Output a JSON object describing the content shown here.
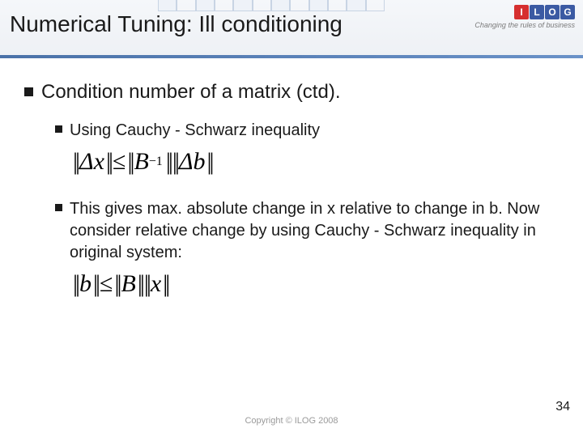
{
  "header": {
    "title": "Numerical Tuning: Ill conditioning",
    "logo": {
      "letters": [
        "I",
        "L",
        "O",
        "G"
      ],
      "brick_colors": [
        "#d62f2f",
        "#3b5aa3",
        "#3b5aa3",
        "#3b5aa3"
      ],
      "tagline": "Changing the rules of business"
    },
    "grid_cells": 12,
    "gradient_from": "#4a72a8",
    "gradient_to": "#6a92c8"
  },
  "content": {
    "main_bullet": "Condition number of a matrix (ctd).",
    "sub_bullet_1": "Using Cauchy - Schwarz inequality",
    "sub_bullet_2": "This gives max. absolute change in x relative to change in b.  Now consider relative change by using Cauchy - Schwarz inequality in original system:",
    "formula1": {
      "lhs_var": "Δx",
      "op": "≤",
      "rhs_var1": "B",
      "rhs_sup": "−1",
      "rhs_var2": "Δb"
    },
    "formula2": {
      "lhs_var": "b",
      "op": "≤",
      "rhs_var1": "B",
      "rhs_var2": "x"
    }
  },
  "footer": {
    "copyright": "Copyright © ILOG 2008",
    "page_number": "34"
  },
  "colors": {
    "text": "#1a1a1a",
    "muted": "#9a9a9a",
    "bg": "#ffffff"
  }
}
